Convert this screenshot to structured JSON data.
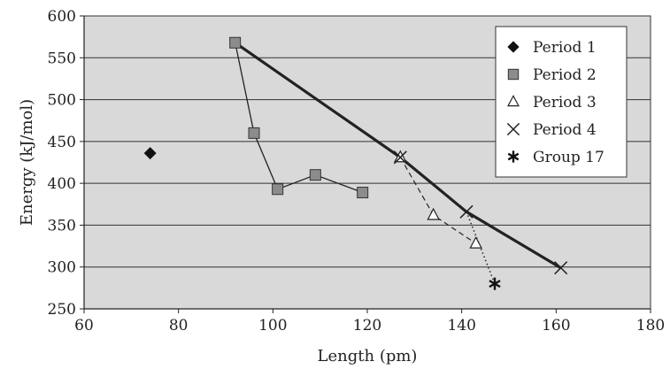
{
  "chart_data": {
    "type": "scatter",
    "title": "",
    "xlabel": "Length (pm)",
    "ylabel": "Energy (kJ/mol)",
    "xlim": [
      60,
      180
    ],
    "ylim": [
      250,
      600
    ],
    "xticks": [
      60,
      80,
      100,
      120,
      140,
      160,
      180
    ],
    "yticks": [
      250,
      300,
      350,
      400,
      450,
      500,
      550,
      600
    ],
    "grid": "horizontal",
    "legend_position": "top-right",
    "background": "#d9d9d9",
    "series": [
      {
        "name": "Period 1",
        "marker": "diamond",
        "line": "none",
        "points": [
          {
            "x": 74,
            "y": 436
          }
        ]
      },
      {
        "name": "Period 2",
        "marker": "square",
        "line": "solid-thin",
        "points": [
          {
            "x": 92,
            "y": 568
          },
          {
            "x": 96,
            "y": 460
          },
          {
            "x": 101,
            "y": 393
          },
          {
            "x": 109,
            "y": 410
          },
          {
            "x": 119,
            "y": 389
          }
        ]
      },
      {
        "name": "Period 3",
        "marker": "triangle",
        "line": "dashed",
        "points": [
          {
            "x": 127,
            "y": 431
          },
          {
            "x": 134,
            "y": 362
          },
          {
            "x": 143,
            "y": 328
          }
        ]
      },
      {
        "name": "Period 4",
        "marker": "x",
        "line": "none",
        "points": [
          {
            "x": 127,
            "y": 431
          },
          {
            "x": 141,
            "y": 366
          },
          {
            "x": 161,
            "y": 299
          }
        ]
      },
      {
        "name": "Group 17",
        "marker": "asterisk",
        "line": "dotted",
        "points": [
          {
            "x": 141,
            "y": 366
          },
          {
            "x": 147,
            "y": 280
          }
        ]
      }
    ],
    "trend_line": {
      "line": "thick-solid",
      "points": [
        {
          "x": 92,
          "y": 568
        },
        {
          "x": 127,
          "y": 431
        },
        {
          "x": 141,
          "y": 366
        },
        {
          "x": 161,
          "y": 299
        }
      ]
    }
  }
}
